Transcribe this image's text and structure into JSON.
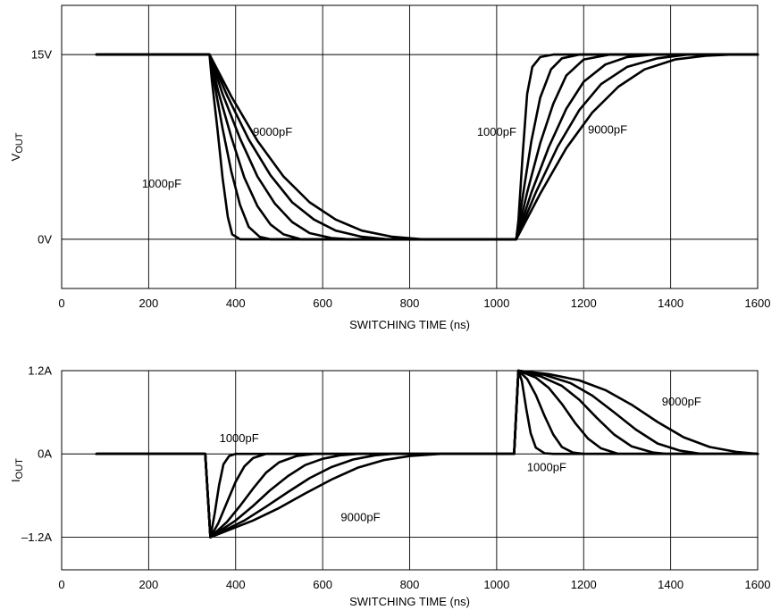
{
  "chart_data": [
    {
      "type": "line",
      "xlabel": "SWITCHING TIME (ns)",
      "ylabel_main": "V",
      "ylabel_sub": "OUT",
      "xlim": [
        0,
        1600
      ],
      "ylim": [
        -4,
        19
      ],
      "x_ticks": [
        0,
        200,
        400,
        600,
        800,
        1000,
        1200,
        1400,
        1600
      ],
      "x_tick_labels": [
        "0",
        "200",
        "400",
        "600",
        "800",
        "1000",
        "1200",
        "1400",
        "1600"
      ],
      "y_ticks": [
        0,
        15
      ],
      "y_tick_labels": [
        "0V",
        "15V"
      ],
      "grid": true,
      "annotations": [
        {
          "text": "9000pF",
          "x": 485,
          "y": 8.4
        },
        {
          "text": "1000pF",
          "x": 230,
          "y": 4.2
        },
        {
          "text": "1000pF",
          "x": 1000,
          "y": 8.4
        },
        {
          "text": "9000pF",
          "x": 1255,
          "y": 8.6
        }
      ],
      "series": [
        {
          "values": [
            [
              80,
              15
            ],
            [
              340,
              15
            ],
            [
              345,
              13
            ],
            [
              358,
              9
            ],
            [
              370,
              5
            ],
            [
              382,
              1.8
            ],
            [
              392,
              0.4
            ],
            [
              410,
              0
            ],
            [
              1045,
              0
            ],
            [
              1050,
              1.5
            ],
            [
              1060,
              7
            ],
            [
              1070,
              11.8
            ],
            [
              1082,
              14
            ],
            [
              1100,
              14.8
            ],
            [
              1130,
              15
            ],
            [
              1600,
              15
            ]
          ]
        },
        {
          "values": [
            [
              80,
              15
            ],
            [
              340,
              15
            ],
            [
              352,
              12.5
            ],
            [
              370,
              9
            ],
            [
              390,
              5.5
            ],
            [
              410,
              2.8
            ],
            [
              430,
              1
            ],
            [
              455,
              0.2
            ],
            [
              480,
              0
            ],
            [
              1045,
              0
            ],
            [
              1060,
              3.5
            ],
            [
              1080,
              8
            ],
            [
              1100,
              11.5
            ],
            [
              1125,
              13.8
            ],
            [
              1150,
              14.7
            ],
            [
              1190,
              15
            ],
            [
              1600,
              15
            ]
          ]
        },
        {
          "values": [
            [
              80,
              15
            ],
            [
              340,
              15
            ],
            [
              360,
              12
            ],
            [
              390,
              8.3
            ],
            [
              420,
              5
            ],
            [
              450,
              2.7
            ],
            [
              480,
              1.2
            ],
            [
              510,
              0.4
            ],
            [
              550,
              0
            ],
            [
              1045,
              0
            ],
            [
              1070,
              3.8
            ],
            [
              1100,
              7.8
            ],
            [
              1130,
              11
            ],
            [
              1160,
              13.3
            ],
            [
              1200,
              14.6
            ],
            [
              1260,
              15
            ],
            [
              1600,
              15
            ]
          ]
        },
        {
          "values": [
            [
              80,
              15
            ],
            [
              340,
              15
            ],
            [
              370,
              11.8
            ],
            [
              410,
              8.2
            ],
            [
              450,
              5.1
            ],
            [
              490,
              2.9
            ],
            [
              530,
              1.4
            ],
            [
              570,
              0.5
            ],
            [
              620,
              0.1
            ],
            [
              660,
              0
            ],
            [
              1045,
              0
            ],
            [
              1080,
              3.8
            ],
            [
              1120,
              7.5
            ],
            [
              1160,
              10.6
            ],
            [
              1200,
              12.8
            ],
            [
              1250,
              14.2
            ],
            [
              1300,
              14.8
            ],
            [
              1360,
              15
            ],
            [
              1600,
              15
            ]
          ]
        },
        {
          "values": [
            [
              80,
              15
            ],
            [
              340,
              15
            ],
            [
              380,
              11.7
            ],
            [
              430,
              8.1
            ],
            [
              480,
              5.2
            ],
            [
              530,
              3
            ],
            [
              580,
              1.6
            ],
            [
              630,
              0.7
            ],
            [
              690,
              0.2
            ],
            [
              750,
              0
            ],
            [
              1045,
              0
            ],
            [
              1090,
              3.8
            ],
            [
              1140,
              7.5
            ],
            [
              1190,
              10.5
            ],
            [
              1240,
              12.6
            ],
            [
              1300,
              14
            ],
            [
              1370,
              14.7
            ],
            [
              1440,
              15
            ],
            [
              1600,
              15
            ]
          ]
        },
        {
          "values": [
            [
              80,
              15
            ],
            [
              340,
              15
            ],
            [
              390,
              11.6
            ],
            [
              450,
              8
            ],
            [
              510,
              5.1
            ],
            [
              570,
              3
            ],
            [
              630,
              1.6
            ],
            [
              690,
              0.7
            ],
            [
              760,
              0.2
            ],
            [
              830,
              0
            ],
            [
              1045,
              0
            ],
            [
              1100,
              3.7
            ],
            [
              1160,
              7.4
            ],
            [
              1220,
              10.3
            ],
            [
              1280,
              12.4
            ],
            [
              1340,
              13.8
            ],
            [
              1410,
              14.6
            ],
            [
              1480,
              14.9
            ],
            [
              1540,
              15
            ],
            [
              1600,
              15
            ]
          ]
        }
      ]
    },
    {
      "type": "line",
      "xlabel": "SWITCHING TIME (ns)",
      "ylabel_main": "I",
      "ylabel_sub": "OUT",
      "xlim": [
        0,
        1600
      ],
      "ylim": [
        -1.67,
        1.2
      ],
      "x_ticks": [
        0,
        200,
        400,
        600,
        800,
        1000,
        1200,
        1400,
        1600
      ],
      "x_tick_labels": [
        "0",
        "200",
        "400",
        "600",
        "800",
        "1000",
        "1200",
        "1400",
        "1600"
      ],
      "y_ticks": [
        -1.2,
        0,
        1.2
      ],
      "y_tick_labels": [
        "–1.2A",
        "0A",
        "1.2A"
      ],
      "grid": true,
      "annotations": [
        {
          "text": "1000pF",
          "x": 408,
          "y": 0.17
        },
        {
          "text": "9000pF",
          "x": 687,
          "y": -0.97
        },
        {
          "text": "1000pF",
          "x": 1115,
          "y": -0.25
        },
        {
          "text": "9000pF",
          "x": 1425,
          "y": 0.7
        }
      ],
      "series": [
        {
          "values": [
            [
              80,
              0
            ],
            [
              330,
              0
            ],
            [
              342,
              -1.2
            ],
            [
              352,
              -0.85
            ],
            [
              362,
              -0.45
            ],
            [
              372,
              -0.15
            ],
            [
              385,
              -0.03
            ],
            [
              400,
              0
            ],
            [
              1040,
              0
            ],
            [
              1050,
              1.2
            ],
            [
              1058,
              1.05
            ],
            [
              1068,
              0.65
            ],
            [
              1078,
              0.3
            ],
            [
              1090,
              0.09
            ],
            [
              1110,
              0.01
            ],
            [
              1130,
              0
            ],
            [
              1600,
              0
            ]
          ]
        },
        {
          "values": [
            [
              80,
              0
            ],
            [
              330,
              0
            ],
            [
              342,
              -1.2
            ],
            [
              360,
              -1
            ],
            [
              380,
              -0.7
            ],
            [
              400,
              -0.4
            ],
            [
              420,
              -0.18
            ],
            [
              440,
              -0.06
            ],
            [
              470,
              0
            ],
            [
              1040,
              0
            ],
            [
              1050,
              1.2
            ],
            [
              1070,
              1.08
            ],
            [
              1090,
              0.85
            ],
            [
              1110,
              0.55
            ],
            [
              1130,
              0.28
            ],
            [
              1150,
              0.1
            ],
            [
              1175,
              0.02
            ],
            [
              1200,
              0
            ],
            [
              1600,
              0
            ]
          ]
        },
        {
          "values": [
            [
              80,
              0
            ],
            [
              330,
              0
            ],
            [
              342,
              -1.2
            ],
            [
              380,
              -0.98
            ],
            [
              410,
              -0.75
            ],
            [
              440,
              -0.5
            ],
            [
              470,
              -0.27
            ],
            [
              500,
              -0.12
            ],
            [
              540,
              -0.03
            ],
            [
              580,
              0
            ],
            [
              1040,
              0
            ],
            [
              1050,
              1.2
            ],
            [
              1090,
              1.1
            ],
            [
              1120,
              0.95
            ],
            [
              1150,
              0.72
            ],
            [
              1180,
              0.45
            ],
            [
              1210,
              0.22
            ],
            [
              1240,
              0.08
            ],
            [
              1280,
              0
            ],
            [
              1600,
              0
            ]
          ]
        },
        {
          "values": [
            [
              80,
              0
            ],
            [
              330,
              0
            ],
            [
              342,
              -1.2
            ],
            [
              400,
              -0.96
            ],
            [
              440,
              -0.75
            ],
            [
              480,
              -0.52
            ],
            [
              520,
              -0.32
            ],
            [
              560,
              -0.16
            ],
            [
              600,
              -0.07
            ],
            [
              640,
              -0.02
            ],
            [
              680,
              0
            ],
            [
              1040,
              0
            ],
            [
              1050,
              1.2
            ],
            [
              1100,
              1.12
            ],
            [
              1150,
              0.98
            ],
            [
              1190,
              0.78
            ],
            [
              1230,
              0.52
            ],
            [
              1270,
              0.28
            ],
            [
              1310,
              0.11
            ],
            [
              1360,
              0.02
            ],
            [
              1390,
              0
            ],
            [
              1600,
              0
            ]
          ]
        },
        {
          "values": [
            [
              80,
              0
            ],
            [
              330,
              0
            ],
            [
              342,
              -1.2
            ],
            [
              420,
              -0.96
            ],
            [
              470,
              -0.76
            ],
            [
              520,
              -0.55
            ],
            [
              570,
              -0.35
            ],
            [
              620,
              -0.19
            ],
            [
              670,
              -0.08
            ],
            [
              720,
              -0.02
            ],
            [
              760,
              0
            ],
            [
              1040,
              0
            ],
            [
              1050,
              1.2
            ],
            [
              1110,
              1.14
            ],
            [
              1170,
              1.02
            ],
            [
              1220,
              0.84
            ],
            [
              1270,
              0.6
            ],
            [
              1320,
              0.35
            ],
            [
              1370,
              0.15
            ],
            [
              1420,
              0.05
            ],
            [
              1470,
              0
            ],
            [
              1600,
              0
            ]
          ]
        },
        {
          "values": [
            [
              80,
              0
            ],
            [
              330,
              0
            ],
            [
              342,
              -1.2
            ],
            [
              440,
              -0.96
            ],
            [
              500,
              -0.78
            ],
            [
              560,
              -0.57
            ],
            [
              620,
              -0.37
            ],
            [
              680,
              -0.2
            ],
            [
              740,
              -0.09
            ],
            [
              800,
              -0.03
            ],
            [
              870,
              0
            ],
            [
              1040,
              0
            ],
            [
              1050,
              1.2
            ],
            [
              1120,
              1.15
            ],
            [
              1190,
              1.06
            ],
            [
              1250,
              0.92
            ],
            [
              1310,
              0.71
            ],
            [
              1370,
              0.46
            ],
            [
              1430,
              0.24
            ],
            [
              1490,
              0.1
            ],
            [
              1550,
              0.03
            ],
            [
              1600,
              0
            ]
          ]
        }
      ]
    }
  ]
}
